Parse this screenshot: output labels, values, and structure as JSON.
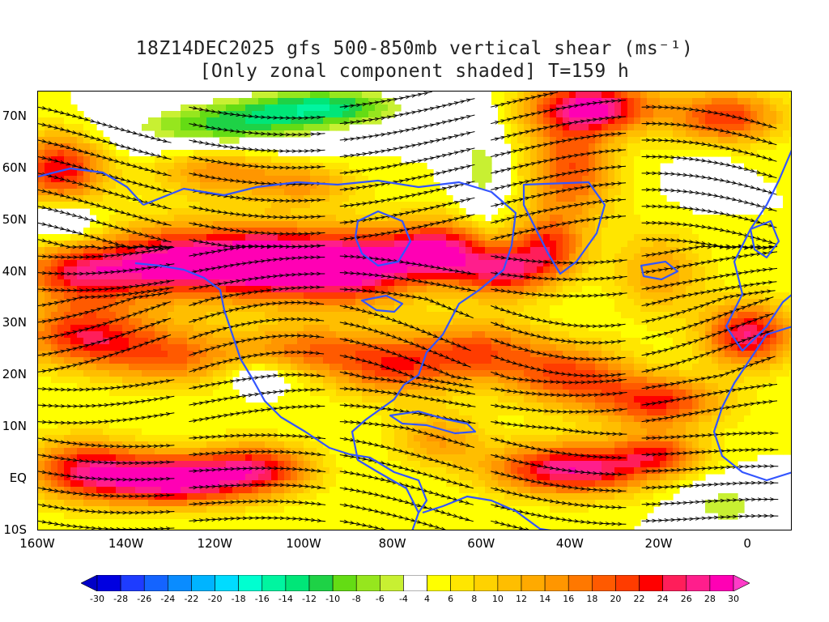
{
  "title": {
    "line1": "18Z14DEC2025 gfs 500-850mb vertical shear (ms⁻¹)",
    "line2": "[Only zonal component shaded] T=159 h"
  },
  "map": {
    "lon_range": [
      -160,
      10
    ],
    "lat_range": [
      -10,
      75
    ],
    "lat_labels": [
      {
        "lat": 70,
        "text": "70N"
      },
      {
        "lat": 60,
        "text": "60N"
      },
      {
        "lat": 50,
        "text": "50N"
      },
      {
        "lat": 40,
        "text": "40N"
      },
      {
        "lat": 30,
        "text": "30N"
      },
      {
        "lat": 20,
        "text": "20N"
      },
      {
        "lat": 10,
        "text": "10N"
      },
      {
        "lat": 0,
        "text": "EQ"
      },
      {
        "lat": -10,
        "text": "10S"
      }
    ],
    "lon_labels": [
      {
        "lon": -160,
        "text": "160W"
      },
      {
        "lon": -140,
        "text": "140W"
      },
      {
        "lon": -120,
        "text": "120W"
      },
      {
        "lon": -100,
        "text": "100W"
      },
      {
        "lon": -80,
        "text": "80W"
      },
      {
        "lon": -60,
        "text": "60W"
      },
      {
        "lon": -40,
        "text": "40W"
      },
      {
        "lon": -20,
        "text": "20W"
      },
      {
        "lon": 0,
        "text": "0"
      }
    ],
    "coastline_color": "#3355ff",
    "streamline_color": "#000000"
  },
  "colorbar": {
    "labels": [
      "-30",
      "-28",
      "-26",
      "-24",
      "-22",
      "-20",
      "-18",
      "-16",
      "-14",
      "-12",
      "-10",
      "-8",
      "-6",
      "-4",
      "4",
      "6",
      "8",
      "10",
      "12",
      "14",
      "16",
      "18",
      "20",
      "22",
      "24",
      "26",
      "28",
      "30"
    ],
    "colors": [
      "#0000e0",
      "#1e3cff",
      "#1464ff",
      "#0a8cff",
      "#00b4ff",
      "#00dcff",
      "#00ffd0",
      "#00f5a0",
      "#00e678",
      "#1ed246",
      "#64dc14",
      "#96e61e",
      "#c8f032",
      "#ffffff",
      "#ffff00",
      "#ffe600",
      "#ffd200",
      "#ffbe00",
      "#ffaa00",
      "#ff9600",
      "#ff7800",
      "#ff5a00",
      "#ff3c00",
      "#ff0000",
      "#ff1e5a",
      "#ff1e8c",
      "#ff00b4"
    ],
    "under_color": "#0000c8",
    "over_color": "#ff3cc8"
  },
  "shear_field": [
    {
      "lon": -150,
      "lat": 40,
      "amp": 20,
      "rx": 14,
      "ry": 6
    },
    {
      "lon": -130,
      "lat": 42,
      "amp": 22,
      "rx": 14,
      "ry": 7
    },
    {
      "lon": -110,
      "lat": 42,
      "amp": 27,
      "rx": 14,
      "ry": 7
    },
    {
      "lon": -90,
      "lat": 41,
      "amp": 27,
      "rx": 14,
      "ry": 7
    },
    {
      "lon": -70,
      "lat": 44,
      "amp": 24,
      "rx": 12,
      "ry": 6
    },
    {
      "lon": -55,
      "lat": 40,
      "amp": 18,
      "rx": 10,
      "ry": 5
    },
    {
      "lon": -155,
      "lat": 60,
      "amp": 20,
      "rx": 10,
      "ry": 7
    },
    {
      "lon": -150,
      "lat": 28,
      "amp": 18,
      "rx": 14,
      "ry": 6
    },
    {
      "lon": -130,
      "lat": 24,
      "amp": 14,
      "rx": 16,
      "ry": 6
    },
    {
      "lon": -100,
      "lat": 25,
      "amp": 12,
      "rx": 14,
      "ry": 5
    },
    {
      "lon": -80,
      "lat": 22,
      "amp": 16,
      "rx": 14,
      "ry": 6
    },
    {
      "lon": -60,
      "lat": 25,
      "amp": 14,
      "rx": 14,
      "ry": 6
    },
    {
      "lon": -40,
      "lat": 20,
      "amp": 16,
      "rx": 14,
      "ry": 6
    },
    {
      "lon": -20,
      "lat": 15,
      "amp": 18,
      "rx": 14,
      "ry": 5
    },
    {
      "lon": 0,
      "lat": 28,
      "amp": 22,
      "rx": 10,
      "ry": 6
    },
    {
      "lon": -130,
      "lat": 0,
      "amp": 27,
      "rx": 16,
      "ry": 5
    },
    {
      "lon": -110,
      "lat": 2,
      "amp": 18,
      "rx": 12,
      "ry": 5
    },
    {
      "lon": -150,
      "lat": 2,
      "amp": 18,
      "rx": 12,
      "ry": 6
    },
    {
      "lon": -40,
      "lat": 2,
      "amp": 24,
      "rx": 18,
      "ry": 5
    },
    {
      "lon": -20,
      "lat": 5,
      "amp": 14,
      "rx": 10,
      "ry": 4
    },
    {
      "lon": -70,
      "lat": 8,
      "amp": 10,
      "rx": 10,
      "ry": 5
    },
    {
      "lon": -40,
      "lat": 60,
      "amp": 16,
      "rx": 10,
      "ry": 10
    },
    {
      "lon": -35,
      "lat": 72,
      "amp": 24,
      "rx": 14,
      "ry": 5
    },
    {
      "lon": -5,
      "lat": 70,
      "amp": 18,
      "rx": 12,
      "ry": 5
    },
    {
      "lon": -45,
      "lat": 45,
      "amp": 16,
      "rx": 8,
      "ry": 6
    },
    {
      "lon": -20,
      "lat": 40,
      "amp": 10,
      "rx": 10,
      "ry": 8
    },
    {
      "lon": -120,
      "lat": 60,
      "amp": 12,
      "rx": 14,
      "ry": 5
    },
    {
      "lon": -100,
      "lat": 57,
      "amp": 10,
      "rx": 12,
      "ry": 4
    },
    {
      "lon": -120,
      "lat": 68,
      "amp": -14,
      "rx": 22,
      "ry": 5
    },
    {
      "lon": -95,
      "lat": 72,
      "amp": -16,
      "rx": 20,
      "ry": 4
    },
    {
      "lon": -60,
      "lat": 60,
      "amp": -10,
      "rx": 5,
      "ry": 10
    },
    {
      "lon": -155,
      "lat": 50,
      "amp": -10,
      "rx": 8,
      "ry": 4
    },
    {
      "lon": -5,
      "lat": -5,
      "amp": -10,
      "rx": 10,
      "ry": 5
    },
    {
      "lon": -110,
      "lat": 20,
      "amp": -8,
      "rx": 8,
      "ry": 3
    },
    {
      "lon": -10,
      "lat": 58,
      "amp": -8,
      "rx": 6,
      "ry": 4
    }
  ]
}
